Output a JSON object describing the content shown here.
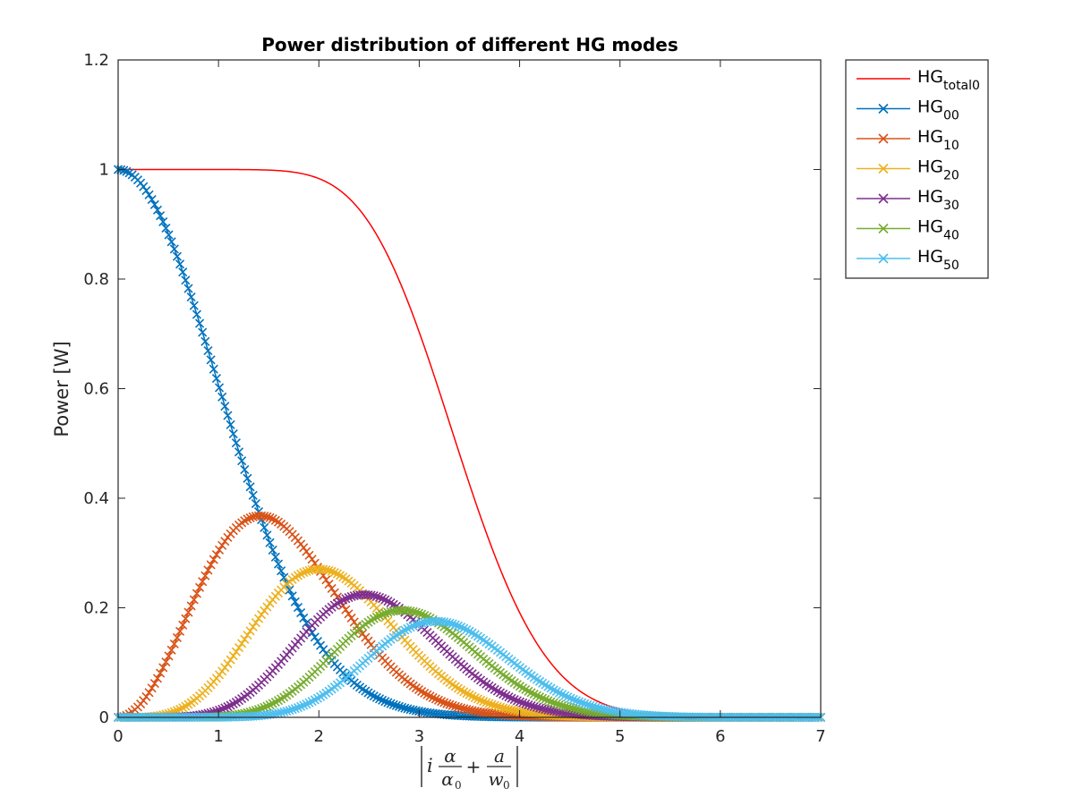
{
  "chart_data": {
    "type": "line",
    "title": "Power distribution of different HG modes",
    "ylabel": "Power [W]",
    "xlabel_math": {
      "i": "i",
      "alpha": "α",
      "alpha0_base": "α",
      "alpha0_sub": "0",
      "plus": "+",
      "a": "a",
      "w0_base": "w",
      "w0_sub": "0"
    },
    "xlim": [
      0,
      7
    ],
    "ylim": [
      0,
      1.2
    ],
    "xticks": [
      0,
      1,
      2,
      3,
      4,
      5,
      6,
      7
    ],
    "xtick_labels": [
      "0",
      "1",
      "2",
      "3",
      "4",
      "5",
      "6",
      "7"
    ],
    "yticks": [
      0,
      0.2,
      0.4,
      0.6,
      0.8,
      1,
      1.2
    ],
    "ytick_labels": [
      "0",
      "0.2",
      "0.4",
      "0.6",
      "0.8",
      "1",
      "1.2"
    ],
    "grid": false,
    "legend_position": "outside-top-right",
    "series": [
      {
        "name": "HG",
        "sub": "total0",
        "color": "#FF0000",
        "marker": "none",
        "kind": "total",
        "n": 5
      },
      {
        "name": "HG",
        "sub": "00",
        "color": "#0072BD",
        "marker": "x",
        "kind": "mode",
        "n": 0
      },
      {
        "name": "HG",
        "sub": "10",
        "color": "#D95319",
        "marker": "x",
        "kind": "mode",
        "n": 1
      },
      {
        "name": "HG",
        "sub": "20",
        "color": "#EDB120",
        "marker": "x",
        "kind": "mode",
        "n": 2
      },
      {
        "name": "HG",
        "sub": "30",
        "color": "#7E2F8E",
        "marker": "x",
        "kind": "mode",
        "n": 3
      },
      {
        "name": "HG",
        "sub": "40",
        "color": "#77AC30",
        "marker": "x",
        "kind": "mode",
        "n": 4
      },
      {
        "name": "HG",
        "sub": "50",
        "color": "#4DBEEE",
        "marker": "x",
        "kind": "mode",
        "n": 5
      }
    ],
    "peak_values": {
      "HG00": 1.0,
      "HG10": 0.37,
      "HG20": 0.27,
      "HG30": 0.22,
      "HG40": 0.2,
      "HG50": 0.18
    }
  }
}
